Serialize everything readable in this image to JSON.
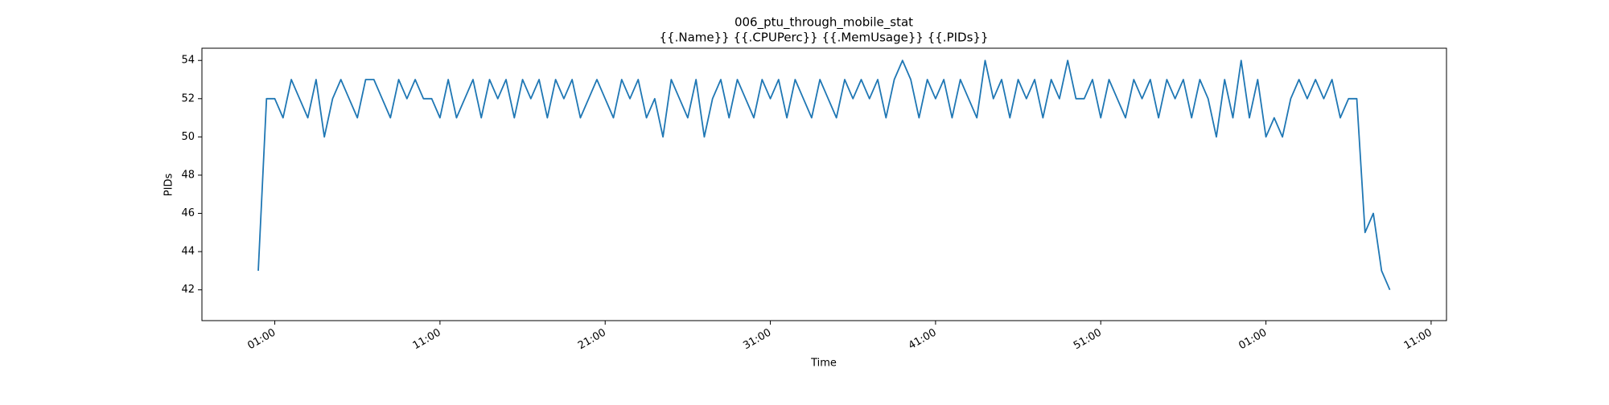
{
  "chart_data": {
    "type": "line",
    "title": "006_ptu_through_mobile_stat",
    "subtitle": "{{.Name}} {{.CPUPerc}} {{.MemUsage}}  {{.PIDs}}",
    "x_label": "Time",
    "y_label": "PIDs",
    "color": "#1f77b4",
    "x": [
      0,
      0.5,
      1,
      1.5,
      2,
      2.5,
      3,
      3.5,
      4,
      4.5,
      5,
      5.5,
      6,
      6.5,
      7,
      7.5,
      8,
      8.5,
      9,
      9.5,
      10,
      10.5,
      11,
      11.5,
      12,
      12.5,
      13,
      13.5,
      14,
      14.5,
      15,
      15.5,
      16,
      16.5,
      17,
      17.5,
      18,
      18.5,
      19,
      19.5,
      20,
      20.5,
      21,
      21.5,
      22,
      22.5,
      23,
      23.5,
      24,
      24.5,
      25,
      25.5,
      26,
      26.5,
      27,
      27.5,
      28,
      28.5,
      29,
      29.5,
      30,
      30.5,
      31,
      31.5,
      32,
      32.5,
      33,
      33.5,
      34,
      34.5,
      35,
      35.5,
      36,
      36.5,
      37,
      37.5,
      38,
      38.5,
      39,
      39.5,
      40,
      40.5,
      41,
      41.5,
      42,
      42.5,
      43,
      43.5,
      44,
      44.5,
      45,
      45.5,
      46,
      46.5,
      47,
      47.5,
      48,
      48.5,
      49,
      49.5,
      50,
      50.5,
      51,
      51.5,
      52,
      52.5,
      53,
      53.5,
      54,
      54.5,
      55,
      55.5,
      56,
      56.5,
      57,
      57.5,
      58,
      58.5,
      59,
      59.5,
      60,
      60.5,
      61,
      61.5,
      62,
      62.5,
      63,
      63.5,
      64,
      64.5,
      65,
      65.5,
      66,
      66.5,
      67,
      67.5,
      68,
      68.5
    ],
    "values": [
      43,
      52,
      52,
      51,
      53,
      52,
      51,
      53,
      50,
      52,
      53,
      52,
      51,
      53,
      53,
      52,
      51,
      53,
      52,
      53,
      52,
      52,
      51,
      53,
      51,
      52,
      53,
      51,
      53,
      52,
      53,
      51,
      53,
      52,
      53,
      51,
      53,
      52,
      53,
      51,
      52,
      53,
      52,
      51,
      53,
      52,
      53,
      51,
      52,
      50,
      53,
      52,
      51,
      53,
      50,
      52,
      53,
      51,
      53,
      52,
      51,
      53,
      52,
      53,
      51,
      53,
      52,
      51,
      53,
      52,
      51,
      53,
      52,
      53,
      52,
      53,
      51,
      53,
      54,
      53,
      51,
      53,
      52,
      53,
      51,
      53,
      52,
      51,
      54,
      52,
      53,
      51,
      53,
      52,
      53,
      51,
      53,
      52,
      54,
      52,
      52,
      53,
      51,
      53,
      52,
      51,
      53,
      52,
      53,
      51,
      53,
      52,
      53,
      51,
      53,
      52,
      50,
      53,
      51,
      54,
      51,
      53,
      50,
      51,
      50,
      52,
      53,
      52,
      53,
      52,
      53,
      51,
      52,
      52,
      45,
      46,
      43,
      42
    ],
    "xlim": [
      -3.41,
      71.93
    ],
    "xticks": [
      {
        "value": 1,
        "label": "01:00"
      },
      {
        "value": 11,
        "label": "11:00"
      },
      {
        "value": 21,
        "label": "21:00"
      },
      {
        "value": 31,
        "label": "31:00"
      },
      {
        "value": 41,
        "label": "41:00"
      },
      {
        "value": 51,
        "label": "51:00"
      },
      {
        "value": 61,
        "label": "01:00"
      },
      {
        "value": 71,
        "label": "11:00"
      }
    ],
    "ylim": [
      40.39,
      54.64
    ],
    "yticks": [
      42,
      44,
      46,
      48,
      50,
      52,
      54
    ]
  }
}
